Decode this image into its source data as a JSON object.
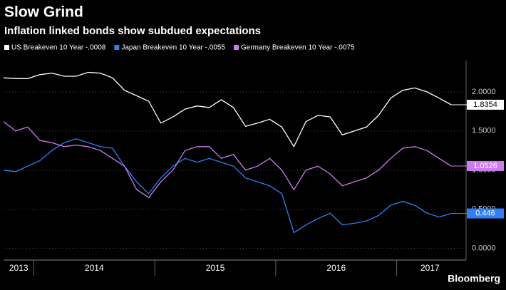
{
  "chart_data": {
    "type": "line",
    "title": "Slow Grind",
    "subtitle": "Inflation linked bonds show subdued expectations",
    "source": "Bloomberg",
    "x": [
      2013.75,
      2013.85,
      2013.95,
      2014.05,
      2014.15,
      2014.25,
      2014.35,
      2014.45,
      2014.55,
      2014.65,
      2014.75,
      2014.85,
      2014.95,
      2015.05,
      2015.15,
      2015.25,
      2015.35,
      2015.45,
      2015.55,
      2015.65,
      2015.75,
      2015.85,
      2015.95,
      2016.05,
      2016.15,
      2016.25,
      2016.35,
      2016.45,
      2016.55,
      2016.65,
      2016.75,
      2016.85,
      2016.95,
      2017.05,
      2017.15,
      2017.25,
      2017.35,
      2017.45
    ],
    "series": [
      {
        "name": "US Breakeven 10 Year   -.0008",
        "color": "#ffffff",
        "values": [
          2.18,
          2.17,
          2.17,
          2.22,
          2.24,
          2.2,
          2.2,
          2.25,
          2.24,
          2.18,
          2.02,
          1.95,
          1.88,
          1.6,
          1.68,
          1.78,
          1.82,
          1.8,
          1.9,
          1.8,
          1.56,
          1.6,
          1.65,
          1.55,
          1.3,
          1.62,
          1.7,
          1.68,
          1.45,
          1.5,
          1.55,
          1.7,
          1.92,
          2.02,
          2.05,
          2.0,
          1.92,
          1.8354
        ]
      },
      {
        "name": "Japan Breakeven 10 Year   -.0055",
        "color": "#2f80f5",
        "values": [
          1.0,
          0.98,
          1.05,
          1.12,
          1.25,
          1.35,
          1.4,
          1.35,
          1.3,
          1.28,
          1.05,
          0.85,
          0.7,
          0.9,
          1.05,
          1.15,
          1.1,
          1.15,
          1.1,
          1.05,
          0.9,
          0.85,
          0.8,
          0.7,
          0.2,
          0.3,
          0.38,
          0.45,
          0.3,
          0.32,
          0.35,
          0.42,
          0.55,
          0.6,
          0.55,
          0.45,
          0.4,
          0.446
        ]
      },
      {
        "name": "Germany Breakeven 10 Year   -.0075",
        "color": "#cc7cf0",
        "values": [
          1.62,
          1.5,
          1.55,
          1.38,
          1.35,
          1.3,
          1.32,
          1.3,
          1.25,
          1.15,
          1.05,
          0.75,
          0.65,
          0.85,
          1.0,
          1.25,
          1.3,
          1.3,
          1.15,
          1.2,
          1.0,
          1.05,
          1.15,
          1.0,
          0.75,
          1.0,
          1.05,
          0.95,
          0.8,
          0.85,
          0.9,
          1.0,
          1.15,
          1.28,
          1.3,
          1.25,
          1.15,
          1.0526
        ]
      }
    ],
    "xlim": [
      2013.75,
      2017.55
    ],
    "xticks": [
      2013,
      2014,
      2015,
      2016,
      2017
    ],
    "ylim": [
      -0.15,
      2.4
    ],
    "yticks": [
      {
        "value": 0,
        "label": "0.0000"
      },
      {
        "value": 0.5,
        "label": "0.5000"
      },
      {
        "value": 1,
        "label": "1.0000"
      },
      {
        "value": 1.5,
        "label": "1.5000"
      },
      {
        "value": 2,
        "label": "2.0000"
      }
    ],
    "grid": true
  }
}
